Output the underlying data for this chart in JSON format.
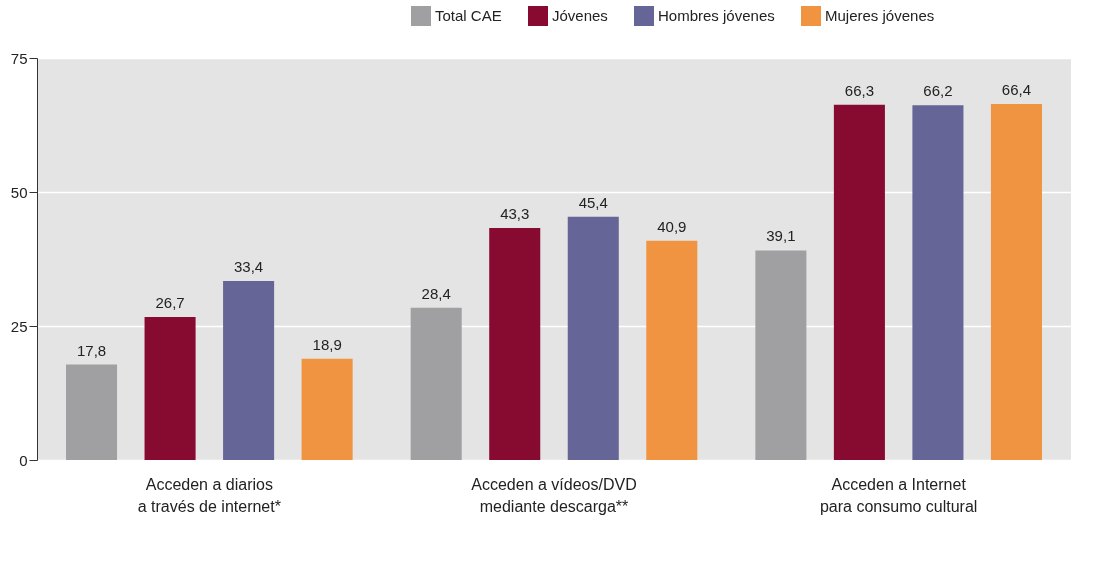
{
  "chart_data": {
    "type": "bar",
    "categories": [
      "Acceden a diarios\na través de internet*",
      "Acceden a vídeos/DVD\nmediante descarga**",
      "Acceden a Internet\npara consumo cultural"
    ],
    "series": [
      {
        "name": "Total CAE",
        "color": "#a0a0a2",
        "values": [
          17.8,
          28.4,
          39.1
        ],
        "value_labels": [
          "17,8",
          "28,4",
          "39,1"
        ]
      },
      {
        "name": "Jóvenes",
        "color": "#870b30",
        "values": [
          26.7,
          43.3,
          66.3
        ],
        "value_labels": [
          "26,7",
          "43,3",
          "66,3"
        ]
      },
      {
        "name": "Hombres jóvenes",
        "color": "#656597",
        "values": [
          33.4,
          45.4,
          66.2
        ],
        "value_labels": [
          "33,4",
          "45,4",
          "66,2"
        ]
      },
      {
        "name": "Mujeres jóvenes",
        "color": "#f09441",
        "values": [
          18.9,
          40.9,
          66.4
        ],
        "value_labels": [
          "18,9",
          "40,9",
          "66,4"
        ]
      }
    ],
    "ylim": [
      0,
      75
    ],
    "yticks": [
      0,
      25,
      50,
      75
    ],
    "grid": "y",
    "legend": "top right"
  }
}
